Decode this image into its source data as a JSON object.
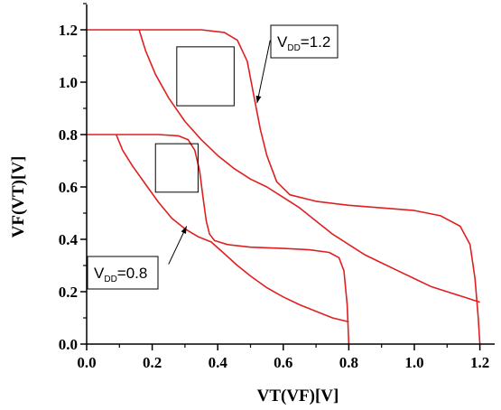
{
  "chart_data": {
    "type": "line",
    "xlabel": "VT(VF)[V]",
    "ylabel": "VF(VT)[V]",
    "xlim": [
      0.0,
      1.25
    ],
    "ylim": [
      0.0,
      1.3
    ],
    "x_ticks": [
      "0.0",
      "0.2",
      "0.4",
      "0.6",
      "0.8",
      "1.0",
      "1.2"
    ],
    "y_ticks": [
      "0.0",
      "0.2",
      "0.4",
      "0.6",
      "0.8",
      "1.0",
      "1.2"
    ],
    "line_color": "#e02020",
    "series": [
      {
        "points": [
          [
            0.0,
            1.2
          ],
          [
            0.2,
            1.2
          ],
          [
            0.35,
            1.2
          ],
          [
            0.42,
            1.19
          ],
          [
            0.46,
            1.16
          ],
          [
            0.49,
            1.08
          ],
          [
            0.51,
            0.95
          ],
          [
            0.53,
            0.82
          ],
          [
            0.55,
            0.72
          ],
          [
            0.58,
            0.62
          ],
          [
            0.62,
            0.57
          ],
          [
            0.7,
            0.545
          ],
          [
            0.8,
            0.53
          ],
          [
            0.9,
            0.52
          ],
          [
            1.0,
            0.51
          ],
          [
            1.08,
            0.49
          ],
          [
            1.14,
            0.45
          ],
          [
            1.17,
            0.38
          ],
          [
            1.185,
            0.25
          ],
          [
            1.195,
            0.1
          ],
          [
            1.2,
            0.0
          ]
        ]
      },
      {
        "points": [
          [
            0.16,
            1.2
          ],
          [
            0.18,
            1.12
          ],
          [
            0.21,
            1.03
          ],
          [
            0.25,
            0.94
          ],
          [
            0.3,
            0.85
          ],
          [
            0.35,
            0.78
          ],
          [
            0.4,
            0.72
          ],
          [
            0.45,
            0.67
          ],
          [
            0.5,
            0.63
          ],
          [
            0.55,
            0.6
          ],
          [
            0.6,
            0.56
          ],
          [
            0.65,
            0.52
          ],
          [
            0.7,
            0.47
          ],
          [
            0.75,
            0.42
          ],
          [
            0.8,
            0.38
          ],
          [
            0.85,
            0.34
          ],
          [
            0.9,
            0.31
          ],
          [
            0.95,
            0.28
          ],
          [
            1.0,
            0.25
          ],
          [
            1.05,
            0.22
          ],
          [
            1.1,
            0.2
          ],
          [
            1.15,
            0.18
          ],
          [
            1.2,
            0.16
          ]
        ]
      },
      {
        "points": [
          [
            0.0,
            0.8
          ],
          [
            0.1,
            0.8
          ],
          [
            0.22,
            0.8
          ],
          [
            0.28,
            0.795
          ],
          [
            0.31,
            0.78
          ],
          [
            0.33,
            0.74
          ],
          [
            0.345,
            0.66
          ],
          [
            0.355,
            0.56
          ],
          [
            0.365,
            0.47
          ],
          [
            0.375,
            0.42
          ],
          [
            0.39,
            0.395
          ],
          [
            0.43,
            0.38
          ],
          [
            0.5,
            0.37
          ],
          [
            0.6,
            0.365
          ],
          [
            0.68,
            0.36
          ],
          [
            0.74,
            0.35
          ],
          [
            0.77,
            0.33
          ],
          [
            0.785,
            0.28
          ],
          [
            0.795,
            0.15
          ],
          [
            0.8,
            0.0
          ]
        ]
      },
      {
        "points": [
          [
            0.09,
            0.8
          ],
          [
            0.11,
            0.74
          ],
          [
            0.14,
            0.68
          ],
          [
            0.18,
            0.61
          ],
          [
            0.22,
            0.54
          ],
          [
            0.26,
            0.48
          ],
          [
            0.3,
            0.44
          ],
          [
            0.34,
            0.41
          ],
          [
            0.38,
            0.39
          ],
          [
            0.42,
            0.345
          ],
          [
            0.46,
            0.3
          ],
          [
            0.5,
            0.26
          ],
          [
            0.55,
            0.215
          ],
          [
            0.6,
            0.18
          ],
          [
            0.65,
            0.15
          ],
          [
            0.7,
            0.125
          ],
          [
            0.75,
            0.1
          ],
          [
            0.8,
            0.085
          ]
        ]
      }
    ],
    "squares": [
      {
        "x0": 0.275,
        "y0": 0.91,
        "x1": 0.45,
        "y1": 1.135
      },
      {
        "x0": 0.21,
        "y0": 0.58,
        "x1": 0.34,
        "y1": 0.765
      }
    ],
    "annotations": [
      {
        "main": "V",
        "sub": "DD",
        "value": "=1.2",
        "arrow_from": [
          0.56,
          1.16
        ],
        "arrow_to": [
          0.52,
          0.92
        ]
      },
      {
        "main": "V",
        "sub": "DD",
        "value": "=0.8",
        "arrow_from": [
          0.25,
          0.305
        ],
        "arrow_to": [
          0.305,
          0.45
        ]
      }
    ]
  }
}
